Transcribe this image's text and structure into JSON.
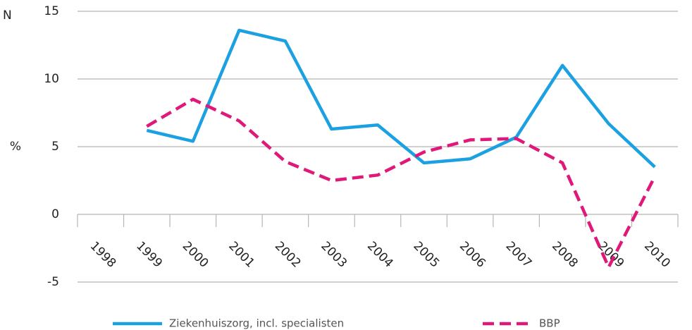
{
  "chart_data": {
    "type": "line",
    "annotations": [
      "N"
    ],
    "y_label": "%",
    "categories": [
      "1998",
      "1999",
      "2000",
      "2001",
      "2002",
      "2003",
      "2004",
      "2005",
      "2006",
      "2007",
      "2008",
      "2009",
      "2010"
    ],
    "series": [
      {
        "name": "Ziekenhuiszorg, incl. specialisten",
        "color": "#1ba1e2",
        "dash": false,
        "values": [
          null,
          6.2,
          5.4,
          13.6,
          12.8,
          6.3,
          6.6,
          3.8,
          4.1,
          5.7,
          11.0,
          6.7,
          3.5
        ]
      },
      {
        "name": "BBP",
        "color": "#e0187a",
        "dash": true,
        "values": [
          null,
          6.5,
          8.5,
          6.9,
          3.9,
          2.5,
          2.9,
          4.6,
          5.5,
          5.6,
          3.8,
          -3.9,
          2.8
        ]
      }
    ],
    "ylim": [
      -5,
      15
    ],
    "yticks": [
      -5,
      0,
      5,
      10,
      15
    ],
    "grid": true
  }
}
